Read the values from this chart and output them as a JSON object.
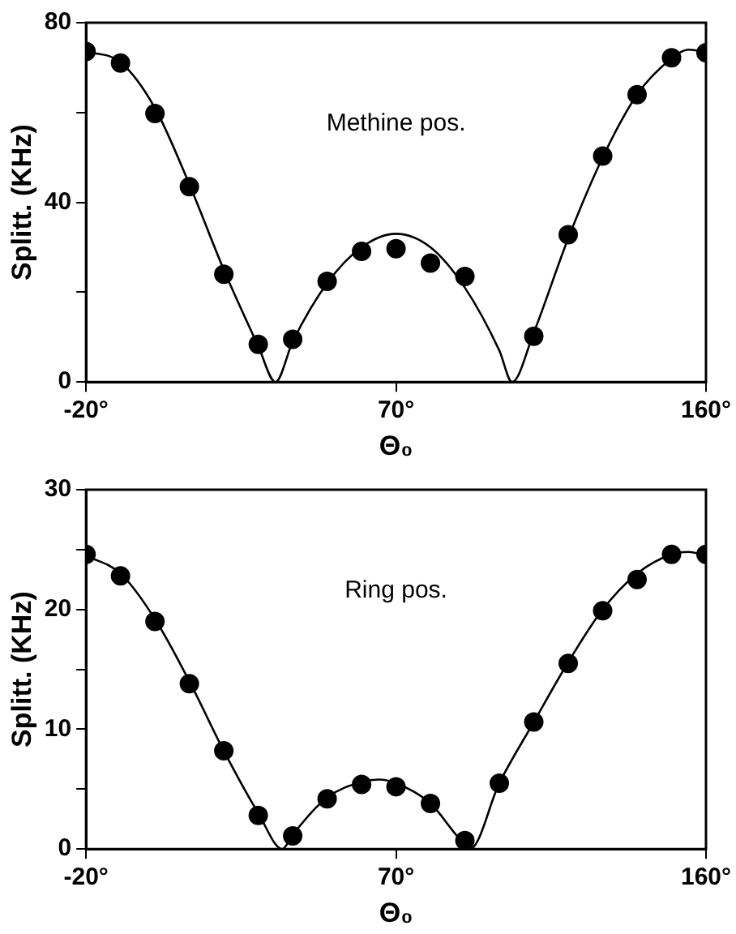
{
  "chart_data": [
    {
      "type": "scatter",
      "ylabel": "Splitt. (KHz)",
      "xlabel": "Θ₀",
      "annotations": [
        "Methine pos."
      ],
      "marker": "circle",
      "xlim": [
        -20,
        160
      ],
      "xticks": [
        {
          "value": -20,
          "label": "-20°"
        },
        {
          "value": 70,
          "label": "70°"
        },
        {
          "value": 160,
          "label": "160°"
        }
      ],
      "ylim": [
        0,
        80
      ],
      "yticks": [
        0,
        {
          "value": 20,
          "label": null
        },
        40,
        {
          "value": 60,
          "label": null
        },
        80
      ],
      "series": [
        {
          "color": "#000000",
          "x": [
            -20,
            -10,
            0,
            10,
            20,
            30,
            40,
            50,
            60,
            70,
            80,
            90,
            110,
            120,
            130,
            140,
            150,
            160
          ],
          "values": [
            73.6,
            71,
            59.8,
            43.5,
            24,
            8.4,
            9.5,
            22.4,
            29.1,
            29.7,
            26.5,
            23.5,
            10.2,
            32.8,
            50.3,
            64,
            72.2,
            73.3
          ]
        },
        {
          "type": "line",
          "color": "#000000",
          "marker": "none",
          "x": [
            -20,
            -10,
            0,
            10,
            20,
            30,
            35,
            40,
            50,
            60,
            70,
            80,
            90,
            100,
            103.7,
            110,
            120,
            130,
            140,
            150,
            155,
            160
          ],
          "values": [
            73.6,
            71.2,
            61,
            44,
            25,
            8,
            0,
            9,
            22,
            30,
            33,
            30,
            21,
            7,
            0,
            11,
            32,
            50,
            64,
            72,
            74,
            73.5
          ]
        }
      ]
    },
    {
      "type": "scatter",
      "ylabel": "Splitt. (KHz)",
      "xlabel": "Θ₀",
      "annotations": [
        "Ring pos."
      ],
      "marker": "circle",
      "xlim": [
        -20,
        160
      ],
      "xticks": [
        {
          "value": -20,
          "label": "-20°"
        },
        {
          "value": 70,
          "label": "70°"
        },
        {
          "value": 160,
          "label": "160°"
        }
      ],
      "ylim": [
        0,
        30
      ],
      "yticks": [
        0,
        {
          "value": 5,
          "label": null
        },
        10,
        {
          "value": 15,
          "label": null
        },
        20,
        {
          "value": 25,
          "label": null
        },
        30
      ],
      "series": [
        {
          "color": "#000000",
          "x": [
            -20,
            -10,
            0,
            10,
            20,
            30,
            40,
            50,
            60,
            70,
            80,
            90,
            100,
            110,
            120,
            130,
            140,
            150,
            160
          ],
          "values": [
            24.6,
            22.8,
            19,
            13.8,
            8.2,
            2.8,
            1.1,
            4.2,
            5.4,
            5.2,
            3.8,
            0.7,
            5.5,
            10.6,
            15.5,
            19.9,
            22.5,
            24.6,
            24.6
          ]
        },
        {
          "type": "line",
          "color": "#000000",
          "marker": "none",
          "x": [
            -20,
            -10,
            0,
            10,
            20,
            30,
            37,
            40,
            50,
            60,
            65,
            70,
            80,
            88,
            91.5,
            100,
            110,
            120,
            130,
            140,
            150,
            155,
            160
          ],
          "values": [
            24.5,
            23,
            19.2,
            14,
            8.2,
            3,
            0,
            1.2,
            4.3,
            5.6,
            5.8,
            5.5,
            3.8,
            1,
            0,
            5.5,
            10.6,
            15.6,
            20,
            23,
            24.6,
            24.8,
            24.5
          ]
        }
      ]
    }
  ]
}
